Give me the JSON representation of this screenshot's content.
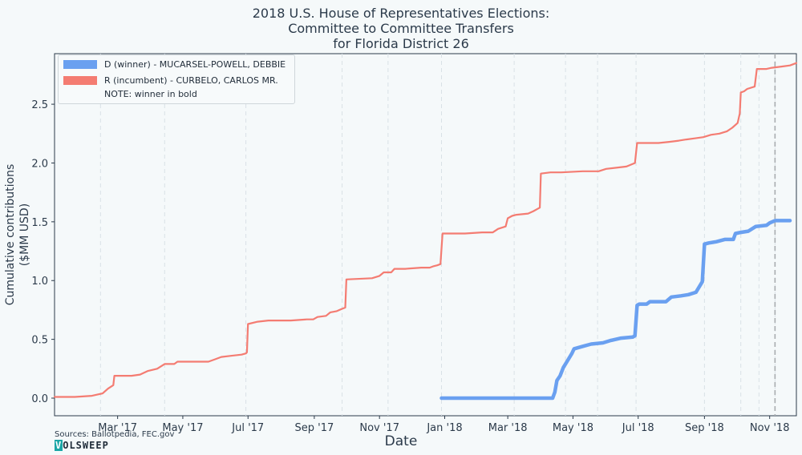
{
  "chart_data": {
    "type": "line",
    "title": [
      "2018 U.S. House of Representatives Elections:",
      "Committee to Committee Transfers",
      "for Florida District 26"
    ],
    "xlabel": "Date",
    "ylabel": [
      "Cumulative contributions",
      "($MM USD)"
    ],
    "ylim": [
      -0.15,
      2.93
    ],
    "xlim": [
      "2017-01-01",
      "2018-11-26"
    ],
    "grid": "vertical dashed",
    "election_marker": "2018-11-06",
    "xticks": [
      {
        "date": "2017-03-01",
        "label": "Mar '17"
      },
      {
        "date": "2017-05-01",
        "label": "May '17"
      },
      {
        "date": "2017-07-01",
        "label": "Jul '17"
      },
      {
        "date": "2017-09-01",
        "label": "Sep '17"
      },
      {
        "date": "2017-11-01",
        "label": "Nov '17"
      },
      {
        "date": "2018-01-01",
        "label": "Jan '18"
      },
      {
        "date": "2018-03-01",
        "label": "Mar '18"
      },
      {
        "date": "2018-05-01",
        "label": "May '18"
      },
      {
        "date": "2018-07-01",
        "label": "Jul '18"
      },
      {
        "date": "2018-09-01",
        "label": "Sep '18"
      },
      {
        "date": "2018-11-01",
        "label": "Nov '18"
      }
    ],
    "vgrid_dates": [
      "2017-02-13",
      "2017-04-14",
      "2017-06-29",
      "2017-09-27",
      "2017-11-09",
      "2017-12-29",
      "2018-03-07",
      "2018-04-24",
      "2018-05-24",
      "2018-06-29",
      "2018-09-01",
      "2018-10-05",
      "2018-10-22",
      "2018-11-06"
    ],
    "yticks": [
      0.0,
      0.5,
      1.0,
      1.5,
      2.0,
      2.5
    ],
    "ytick_labels": [
      "0.0",
      "0.5",
      "1.0",
      "1.5",
      "2.0",
      "2.5"
    ],
    "legend_position": "top-left",
    "series": [
      {
        "name": "D (winner) - MUCARSEL-POWELL, DEBBIE",
        "color": "#6aa0f0",
        "bold": true,
        "points": [
          [
            "2017-12-29",
            0.0
          ],
          [
            "2018-04-12",
            0.0
          ],
          [
            "2018-04-14",
            0.05
          ],
          [
            "2018-04-16",
            0.15
          ],
          [
            "2018-04-19",
            0.19
          ],
          [
            "2018-04-22",
            0.26
          ],
          [
            "2018-04-26",
            0.32
          ],
          [
            "2018-04-30",
            0.38
          ],
          [
            "2018-05-02",
            0.42
          ],
          [
            "2018-05-10",
            0.44
          ],
          [
            "2018-05-18",
            0.46
          ],
          [
            "2018-05-29",
            0.47
          ],
          [
            "2018-06-05",
            0.49
          ],
          [
            "2018-06-15",
            0.51
          ],
          [
            "2018-06-26",
            0.52
          ],
          [
            "2018-06-28",
            0.53
          ],
          [
            "2018-06-30",
            0.79
          ],
          [
            "2018-07-02",
            0.8
          ],
          [
            "2018-07-09",
            0.8
          ],
          [
            "2018-07-12",
            0.82
          ],
          [
            "2018-07-27",
            0.82
          ],
          [
            "2018-08-01",
            0.86
          ],
          [
            "2018-08-10",
            0.87
          ],
          [
            "2018-08-17",
            0.88
          ],
          [
            "2018-08-24",
            0.9
          ],
          [
            "2018-08-30",
            0.99
          ],
          [
            "2018-09-01",
            1.31
          ],
          [
            "2018-09-05",
            1.32
          ],
          [
            "2018-09-12",
            1.33
          ],
          [
            "2018-09-20",
            1.35
          ],
          [
            "2018-09-28",
            1.35
          ],
          [
            "2018-09-30",
            1.4
          ],
          [
            "2018-10-05",
            1.41
          ],
          [
            "2018-10-12",
            1.42
          ],
          [
            "2018-10-19",
            1.46
          ],
          [
            "2018-10-29",
            1.47
          ],
          [
            "2018-11-01",
            1.49
          ],
          [
            "2018-11-06",
            1.51
          ],
          [
            "2018-11-20",
            1.51
          ]
        ]
      },
      {
        "name": "R (incumbent) - CURBELO, CARLOS MR.",
        "color": "#f47c72",
        "bold": false,
        "points": [
          [
            "2017-01-01",
            0.01
          ],
          [
            "2017-01-20",
            0.01
          ],
          [
            "2017-02-05",
            0.02
          ],
          [
            "2017-02-10",
            0.03
          ],
          [
            "2017-02-15",
            0.04
          ],
          [
            "2017-02-20",
            0.08
          ],
          [
            "2017-02-25",
            0.11
          ],
          [
            "2017-02-26",
            0.19
          ],
          [
            "2017-03-14",
            0.19
          ],
          [
            "2017-03-22",
            0.2
          ],
          [
            "2017-03-29",
            0.23
          ],
          [
            "2017-04-07",
            0.25
          ],
          [
            "2017-04-14",
            0.29
          ],
          [
            "2017-04-23",
            0.29
          ],
          [
            "2017-04-26",
            0.31
          ],
          [
            "2017-05-25",
            0.31
          ],
          [
            "2017-05-31",
            0.33
          ],
          [
            "2017-06-06",
            0.35
          ],
          [
            "2017-06-15",
            0.36
          ],
          [
            "2017-06-25",
            0.37
          ],
          [
            "2017-06-29",
            0.38
          ],
          [
            "2017-06-30",
            0.39
          ],
          [
            "2017-07-01",
            0.63
          ],
          [
            "2017-07-10",
            0.65
          ],
          [
            "2017-07-20",
            0.66
          ],
          [
            "2017-08-10",
            0.66
          ],
          [
            "2017-08-25",
            0.67
          ],
          [
            "2017-08-31",
            0.67
          ],
          [
            "2017-09-04",
            0.69
          ],
          [
            "2017-09-12",
            0.7
          ],
          [
            "2017-09-16",
            0.73
          ],
          [
            "2017-09-22",
            0.74
          ],
          [
            "2017-09-27",
            0.76
          ],
          [
            "2017-09-30",
            0.77
          ],
          [
            "2017-10-01",
            1.01
          ],
          [
            "2017-10-25",
            1.02
          ],
          [
            "2017-11-01",
            1.04
          ],
          [
            "2017-11-05",
            1.07
          ],
          [
            "2017-11-12",
            1.07
          ],
          [
            "2017-11-15",
            1.1
          ],
          [
            "2017-11-25",
            1.1
          ],
          [
            "2017-12-10",
            1.11
          ],
          [
            "2017-12-18",
            1.11
          ],
          [
            "2017-12-21",
            1.12
          ],
          [
            "2017-12-25",
            1.13
          ],
          [
            "2017-12-28",
            1.14
          ],
          [
            "2017-12-30",
            1.4
          ],
          [
            "2018-01-20",
            1.4
          ],
          [
            "2018-02-05",
            1.41
          ],
          [
            "2018-02-15",
            1.41
          ],
          [
            "2018-02-20",
            1.44
          ],
          [
            "2018-02-27",
            1.46
          ],
          [
            "2018-03-01",
            1.53
          ],
          [
            "2018-03-05",
            1.55
          ],
          [
            "2018-03-09",
            1.56
          ],
          [
            "2018-03-20",
            1.57
          ],
          [
            "2018-03-25",
            1.59
          ],
          [
            "2018-03-29",
            1.61
          ],
          [
            "2018-03-31",
            1.62
          ],
          [
            "2018-04-01",
            1.91
          ],
          [
            "2018-04-10",
            1.92
          ],
          [
            "2018-04-20",
            1.92
          ],
          [
            "2018-05-10",
            1.93
          ],
          [
            "2018-05-25",
            1.93
          ],
          [
            "2018-06-01",
            1.95
          ],
          [
            "2018-06-20",
            1.97
          ],
          [
            "2018-06-28",
            2.0
          ],
          [
            "2018-06-30",
            2.17
          ],
          [
            "2018-07-20",
            2.17
          ],
          [
            "2018-07-30",
            2.18
          ],
          [
            "2018-08-08",
            2.19
          ],
          [
            "2018-08-15",
            2.2
          ],
          [
            "2018-08-23",
            2.21
          ],
          [
            "2018-08-31",
            2.22
          ],
          [
            "2018-09-07",
            2.24
          ],
          [
            "2018-09-15",
            2.25
          ],
          [
            "2018-09-22",
            2.27
          ],
          [
            "2018-09-27",
            2.3
          ],
          [
            "2018-10-02",
            2.34
          ],
          [
            "2018-10-04",
            2.42
          ],
          [
            "2018-10-05",
            2.6
          ],
          [
            "2018-10-08",
            2.61
          ],
          [
            "2018-10-11",
            2.63
          ],
          [
            "2018-10-18",
            2.65
          ],
          [
            "2018-10-20",
            2.8
          ],
          [
            "2018-10-29",
            2.8
          ],
          [
            "2018-11-03",
            2.81
          ],
          [
            "2018-11-12",
            2.82
          ],
          [
            "2018-11-20",
            2.83
          ],
          [
            "2018-11-26",
            2.85
          ]
        ]
      }
    ]
  },
  "legend": {
    "d_label": "D (winner) - MUCARSEL-POWELL, DEBBIE",
    "r_label": "R (incumbent) - CURBELO, CARLOS MR.",
    "note": "NOTE: winner in bold"
  },
  "title": {
    "line1": "2018 U.S. House of Representatives Elections:",
    "line2": "Committee to Committee Transfers",
    "line3": "for Florida District 26"
  },
  "axes": {
    "xlabel": "Date",
    "ylabel_line1": "Cumulative contributions",
    "ylabel_line2": "($MM USD)"
  },
  "footer": {
    "sources": "Sources: Ballotpedia, FEC.gov",
    "logo_first": "V",
    "logo_rest": "OLSWEEP"
  }
}
